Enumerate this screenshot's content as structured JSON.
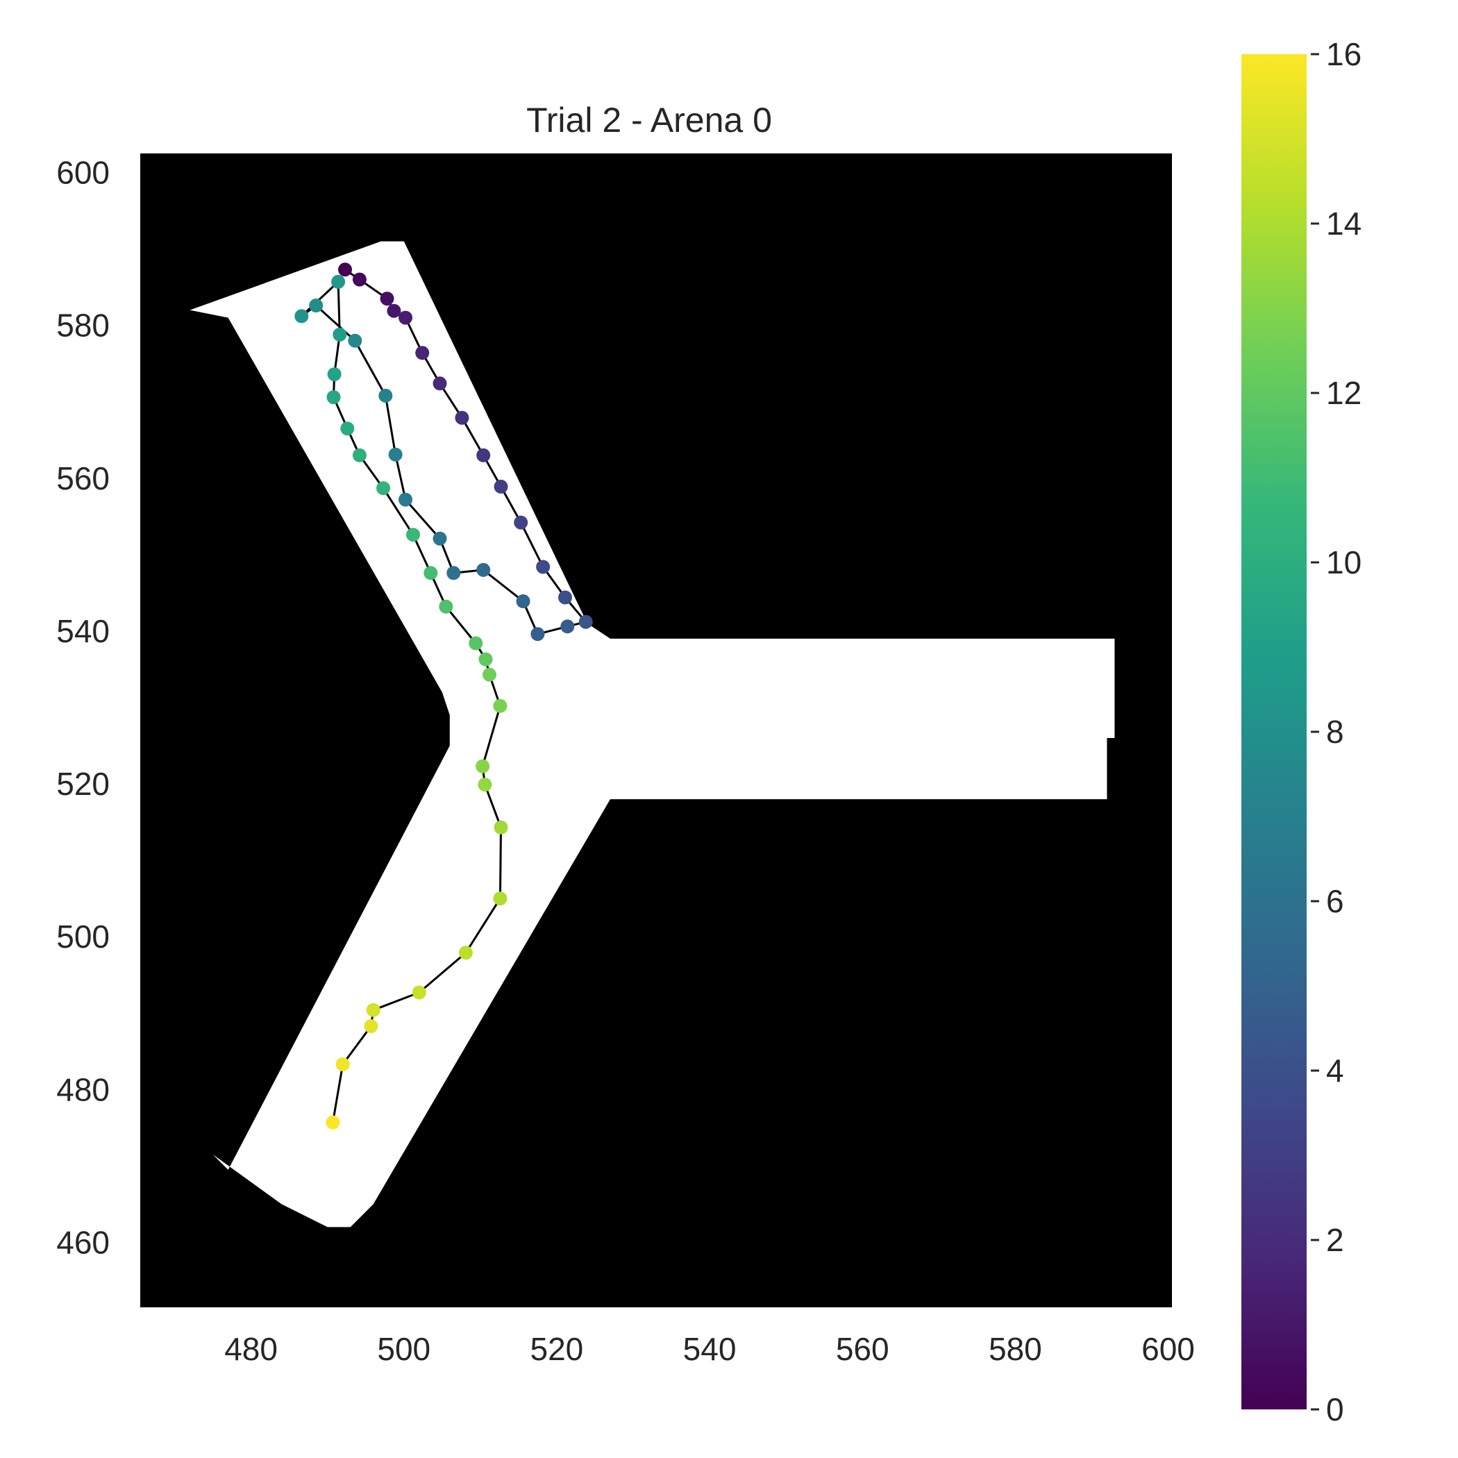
{
  "chart_data": {
    "type": "scatter",
    "title": "Trial 2 - Arena 0",
    "xlabel": "",
    "ylabel": "",
    "xlim": [
      465.5,
      600.5
    ],
    "ylim": [
      451.5,
      602.5
    ],
    "x_ticks": [
      480,
      500,
      520,
      540,
      560,
      580,
      600
    ],
    "y_ticks": [
      460,
      480,
      500,
      520,
      540,
      560,
      580,
      600
    ],
    "grid": false,
    "background": "#000000",
    "arena": {
      "fill": "#ffffff",
      "outline": [
        [
          477,
          469.5
        ],
        [
          475,
          471.5
        ],
        [
          484,
          465
        ],
        [
          490,
          462
        ],
        [
          493,
          462
        ],
        [
          496,
          465
        ],
        [
          527,
          518
        ],
        [
          592,
          518
        ],
        [
          592,
          526
        ],
        [
          593,
          526
        ],
        [
          593,
          539
        ],
        [
          527,
          539
        ],
        [
          524,
          541
        ],
        [
          500,
          591
        ],
        [
          497,
          591
        ],
        [
          472,
          582
        ],
        [
          477,
          581
        ],
        [
          505,
          532
        ],
        [
          506,
          529
        ],
        [
          506,
          525
        ]
      ]
    },
    "colorbar": {
      "colormap": "viridis",
      "range": [
        0,
        16
      ],
      "ticks": [
        0,
        2,
        4,
        6,
        8,
        10,
        12,
        14,
        16
      ],
      "colors": [
        "#440154",
        "#482878",
        "#3e4989",
        "#31688e",
        "#26828e",
        "#1f9e89",
        "#35b779",
        "#6ece58",
        "#b5de2b",
        "#fde725"
      ]
    },
    "trajectory": {
      "line_color": "#000000",
      "x": [
        492.3,
        494.2,
        497.8,
        498.7,
        500.2,
        502.4,
        504.7,
        507.6,
        510.4,
        512.7,
        515.3,
        518.2,
        521.1,
        523.8,
        521.4,
        517.5,
        515.6,
        510.4,
        506.5,
        504.7,
        500.2,
        498.9,
        497.6,
        493.6,
        488.5,
        486.6,
        491.4,
        491.6,
        490.9,
        490.8,
        492.6,
        494.2,
        497.3,
        501.2,
        503.5,
        505.5,
        509.4,
        510.7,
        511.2,
        512.6,
        510.3,
        510.6,
        512.7,
        512.6,
        508.1,
        502.0,
        496.0,
        495.7,
        492.0,
        490.7
      ],
      "y": [
        587.3,
        586.0,
        583.5,
        581.9,
        581.0,
        576.4,
        572.4,
        567.9,
        563.0,
        558.9,
        554.2,
        548.4,
        544.4,
        541.2,
        540.6,
        539.6,
        543.9,
        548.0,
        547.6,
        552.1,
        557.2,
        563.1,
        570.8,
        578.0,
        582.6,
        581.2,
        585.7,
        578.8,
        573.6,
        570.6,
        566.5,
        563.0,
        558.7,
        552.6,
        547.6,
        543.2,
        538.4,
        536.3,
        534.3,
        530.2,
        522.3,
        519.9,
        514.3,
        505.0,
        497.9,
        492.7,
        490.4,
        488.3,
        483.3,
        475.7
      ],
      "t": [
        0.0,
        0.33,
        0.65,
        0.98,
        1.31,
        1.63,
        1.96,
        2.29,
        2.61,
        2.94,
        3.27,
        3.59,
        3.92,
        4.24,
        4.57,
        4.9,
        5.22,
        5.55,
        5.88,
        6.2,
        6.53,
        6.86,
        7.18,
        7.51,
        7.84,
        8.16,
        8.49,
        8.82,
        9.14,
        9.47,
        9.8,
        10.12,
        10.45,
        10.78,
        11.1,
        11.43,
        11.76,
        12.08,
        12.41,
        12.73,
        13.06,
        13.39,
        13.71,
        14.04,
        14.37,
        14.69,
        15.02,
        15.35,
        15.67,
        16.0
      ]
    }
  }
}
